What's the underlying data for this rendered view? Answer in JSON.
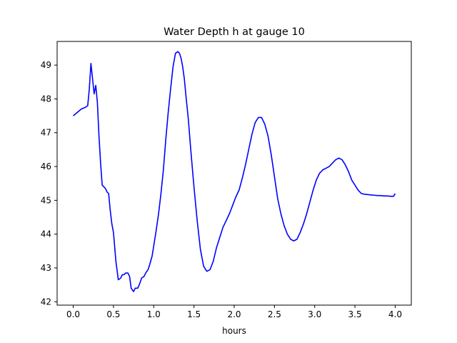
{
  "chart_data": {
    "type": "line",
    "title": "Water Depth h at gauge 10",
    "xlabel": "hours",
    "ylabel": "",
    "xlim": [
      -0.2,
      4.2
    ],
    "ylim": [
      41.9,
      49.7
    ],
    "xticks": [
      0.0,
      0.5,
      1.0,
      1.5,
      2.0,
      2.5,
      3.0,
      3.5,
      4.0
    ],
    "xtick_labels": [
      "0.0",
      "0.5",
      "1.0",
      "1.5",
      "2.0",
      "2.5",
      "3.0",
      "3.5",
      "4.0"
    ],
    "yticks": [
      42,
      43,
      44,
      45,
      46,
      47,
      48,
      49
    ],
    "ytick_labels": [
      "42",
      "43",
      "44",
      "45",
      "46",
      "47",
      "48",
      "49"
    ],
    "grid": false,
    "legend": "none",
    "series": [
      {
        "color": "#0000ff",
        "x": [
          0.0,
          0.05,
          0.1,
          0.15,
          0.18,
          0.2,
          0.22,
          0.24,
          0.26,
          0.28,
          0.3,
          0.32,
          0.34,
          0.36,
          0.38,
          0.4,
          0.42,
          0.44,
          0.46,
          0.48,
          0.5,
          0.53,
          0.56,
          0.59,
          0.61,
          0.63,
          0.65,
          0.68,
          0.7,
          0.72,
          0.75,
          0.77,
          0.8,
          0.82,
          0.85,
          0.88,
          0.9,
          0.93,
          0.95,
          0.98,
          1.0,
          1.03,
          1.06,
          1.09,
          1.12,
          1.15,
          1.18,
          1.21,
          1.24,
          1.27,
          1.3,
          1.32,
          1.34,
          1.36,
          1.38,
          1.4,
          1.43,
          1.46,
          1.5,
          1.54,
          1.58,
          1.62,
          1.66,
          1.7,
          1.74,
          1.78,
          1.82,
          1.86,
          1.9,
          1.94,
          1.98,
          2.02,
          2.06,
          2.1,
          2.14,
          2.18,
          2.22,
          2.26,
          2.3,
          2.34,
          2.38,
          2.42,
          2.46,
          2.5,
          2.54,
          2.58,
          2.62,
          2.66,
          2.7,
          2.74,
          2.78,
          2.82,
          2.86,
          2.9,
          2.94,
          2.98,
          3.02,
          3.06,
          3.1,
          3.14,
          3.18,
          3.22,
          3.26,
          3.3,
          3.34,
          3.38,
          3.42,
          3.46,
          3.5,
          3.54,
          3.58,
          3.62,
          3.66,
          3.7,
          3.74,
          3.78,
          3.82,
          3.86,
          3.9,
          3.94,
          3.98,
          4.0
        ],
        "y": [
          47.5,
          47.6,
          47.7,
          47.75,
          47.8,
          48.3,
          49.05,
          48.6,
          48.15,
          48.4,
          47.9,
          46.9,
          46.1,
          45.45,
          45.4,
          45.35,
          45.25,
          45.2,
          44.7,
          44.3,
          44.05,
          43.2,
          42.65,
          42.7,
          42.8,
          42.8,
          42.85,
          42.85,
          42.75,
          42.4,
          42.3,
          42.4,
          42.4,
          42.5,
          42.7,
          42.75,
          42.85,
          42.95,
          43.1,
          43.35,
          43.65,
          44.1,
          44.6,
          45.2,
          45.9,
          46.8,
          47.6,
          48.3,
          48.95,
          49.35,
          49.4,
          49.35,
          49.2,
          48.95,
          48.6,
          48.1,
          47.4,
          46.5,
          45.4,
          44.4,
          43.55,
          43.05,
          42.9,
          42.95,
          43.2,
          43.6,
          43.9,
          44.2,
          44.4,
          44.6,
          44.85,
          45.1,
          45.3,
          45.65,
          46.05,
          46.5,
          46.95,
          47.3,
          47.45,
          47.45,
          47.25,
          46.9,
          46.35,
          45.7,
          45.05,
          44.6,
          44.25,
          44.0,
          43.85,
          43.8,
          43.85,
          44.05,
          44.3,
          44.6,
          44.95,
          45.3,
          45.6,
          45.8,
          45.9,
          45.95,
          46.0,
          46.1,
          46.2,
          46.25,
          46.2,
          46.05,
          45.85,
          45.6,
          45.45,
          45.3,
          45.2,
          45.18,
          45.17,
          45.16,
          45.15,
          45.14,
          45.14,
          45.13,
          45.13,
          45.12,
          45.12,
          45.2
        ]
      }
    ]
  }
}
